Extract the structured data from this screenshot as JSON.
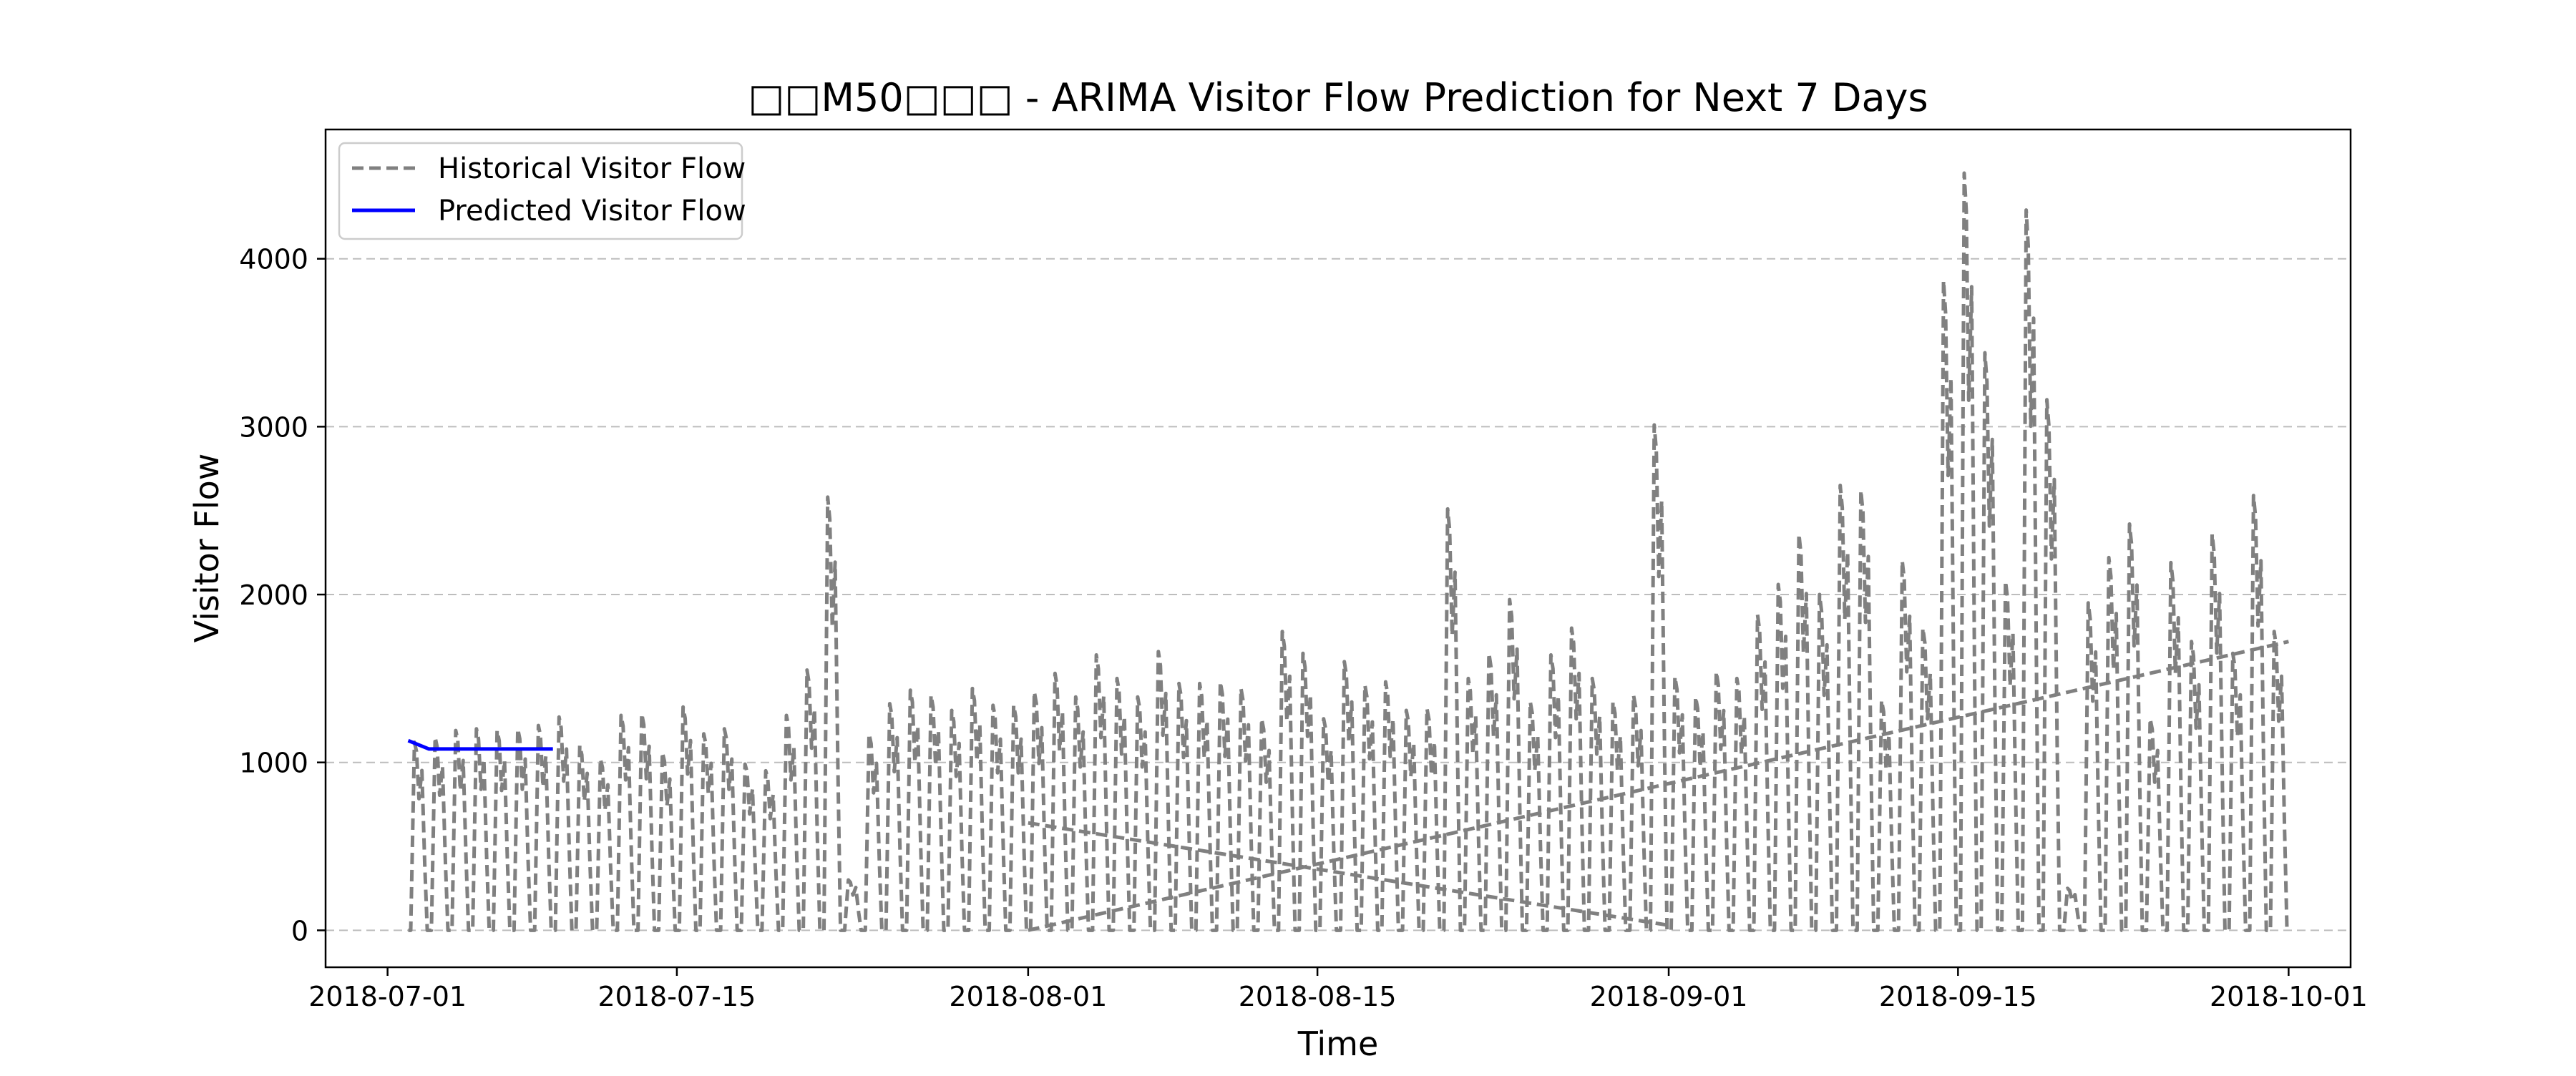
{
  "chart_data": {
    "type": "line",
    "title": "□□M50□□□ - ARIMA Visitor Flow Prediction for Next 7 Days",
    "xlabel": "Time",
    "ylabel": "Visitor Flow",
    "x_range": [
      "2018-06-28",
      "2018-10-04"
    ],
    "ylim": [
      -220,
      4770
    ],
    "x_ticks": [
      "2018-07-01",
      "2018-07-15",
      "2018-08-01",
      "2018-08-15",
      "2018-09-01",
      "2018-09-15",
      "2018-10-01"
    ],
    "y_ticks": [
      0,
      1000,
      2000,
      3000,
      4000
    ],
    "grid": "y-dashed",
    "legend_position": "top-left",
    "series": [
      {
        "name": "Historical Visitor Flow",
        "style": "dashed",
        "color": "#808080",
        "daily_peaks": [
          [
            "2018-07-02",
            1120
          ],
          [
            "2018-07-03",
            1150
          ],
          [
            "2018-07-04",
            1190
          ],
          [
            "2018-07-05",
            1200
          ],
          [
            "2018-07-06",
            1190
          ],
          [
            "2018-07-07",
            1200
          ],
          [
            "2018-07-08",
            1220
          ],
          [
            "2018-07-09",
            1270
          ],
          [
            "2018-07-10",
            1100
          ],
          [
            "2018-07-11",
            1020
          ],
          [
            "2018-07-12",
            1280
          ],
          [
            "2018-07-13",
            1290
          ],
          [
            "2018-07-14",
            1060
          ],
          [
            "2018-07-15",
            1330
          ],
          [
            "2018-07-16",
            1170
          ],
          [
            "2018-07-17",
            1200
          ],
          [
            "2018-07-18",
            990
          ],
          [
            "2018-07-19",
            950
          ],
          [
            "2018-07-20",
            1280
          ],
          [
            "2018-07-21",
            1550
          ],
          [
            "2018-07-22",
            2580
          ],
          [
            "2018-07-23",
            300
          ],
          [
            "2018-07-24",
            1170
          ],
          [
            "2018-07-25",
            1350
          ],
          [
            "2018-07-26",
            1430
          ],
          [
            "2018-07-27",
            1400
          ],
          [
            "2018-07-28",
            1310
          ],
          [
            "2018-07-29",
            1440
          ],
          [
            "2018-07-30",
            1340
          ],
          [
            "2018-07-31",
            1340
          ],
          [
            "2018-08-01",
            1420
          ],
          [
            "2018-08-02",
            1530
          ],
          [
            "2018-08-03",
            1390
          ],
          [
            "2018-08-04",
            1640
          ],
          [
            "2018-08-05",
            1500
          ],
          [
            "2018-08-06",
            1390
          ],
          [
            "2018-08-07",
            1660
          ],
          [
            "2018-08-08",
            1470
          ],
          [
            "2018-08-09",
            1470
          ],
          [
            "2018-08-10",
            1480
          ],
          [
            "2018-08-11",
            1440
          ],
          [
            "2018-08-12",
            1260
          ],
          [
            "2018-08-13",
            1780
          ],
          [
            "2018-08-14",
            1650
          ],
          [
            "2018-08-15",
            1260
          ],
          [
            "2018-08-16",
            1600
          ],
          [
            "2018-08-17",
            1460
          ],
          [
            "2018-08-18",
            1480
          ],
          [
            "2018-08-19",
            1310
          ],
          [
            "2018-08-20",
            1320
          ],
          [
            "2018-08-21",
            2510
          ],
          [
            "2018-08-22",
            1500
          ],
          [
            "2018-08-23",
            1650
          ],
          [
            "2018-08-24",
            1970
          ],
          [
            "2018-08-25",
            1360
          ],
          [
            "2018-08-26",
            1640
          ],
          [
            "2018-08-27",
            1800
          ],
          [
            "2018-08-28",
            1500
          ],
          [
            "2018-08-29",
            1360
          ],
          [
            "2018-08-30",
            1400
          ],
          [
            "2018-08-31",
            3010
          ],
          [
            "2018-09-01",
            1510
          ],
          [
            "2018-09-02",
            1390
          ],
          [
            "2018-09-03",
            1540
          ],
          [
            "2018-09-04",
            1500
          ],
          [
            "2018-09-05",
            1880
          ],
          [
            "2018-09-06",
            2060
          ],
          [
            "2018-09-07",
            2360
          ],
          [
            "2018-09-08",
            2000
          ],
          [
            "2018-09-09",
            2650
          ],
          [
            "2018-09-10",
            2620
          ],
          [
            "2018-09-11",
            1370
          ],
          [
            "2018-09-12",
            2200
          ],
          [
            "2018-09-13",
            1800
          ],
          [
            "2018-09-14",
            3870
          ],
          [
            "2018-09-15",
            4510
          ],
          [
            "2018-09-16",
            3440
          ],
          [
            "2018-09-17",
            2080
          ],
          [
            "2018-09-18",
            4290
          ],
          [
            "2018-09-19",
            3160
          ],
          [
            "2018-09-20",
            250
          ],
          [
            "2018-09-21",
            1950
          ],
          [
            "2018-09-22",
            2220
          ],
          [
            "2018-09-23",
            2420
          ],
          [
            "2018-09-24",
            1260
          ],
          [
            "2018-09-25",
            2190
          ],
          [
            "2018-09-26",
            1720
          ],
          [
            "2018-09-27",
            2360
          ],
          [
            "2018-09-28",
            1650
          ],
          [
            "2018-09-29",
            2590
          ],
          [
            "2018-09-30",
            1780
          ]
        ],
        "diagonal_segments": [
          [
            [
              "2018-08-01",
              640
            ],
            [
              "2018-09-01",
              30
            ]
          ],
          [
            [
              "2018-08-01",
              0
            ],
            [
              "2018-10-01",
              1720
            ]
          ]
        ]
      },
      {
        "name": "Predicted Visitor Flow",
        "style": "solid",
        "color": "#0000ff",
        "x": [
          "2018-07-02",
          "2018-07-03",
          "2018-07-04",
          "2018-07-05",
          "2018-07-06",
          "2018-07-07",
          "2018-07-08",
          "2018-07-09"
        ],
        "values": [
          1130,
          1080,
          1080,
          1080,
          1080,
          1080,
          1080,
          1080
        ]
      }
    ]
  }
}
